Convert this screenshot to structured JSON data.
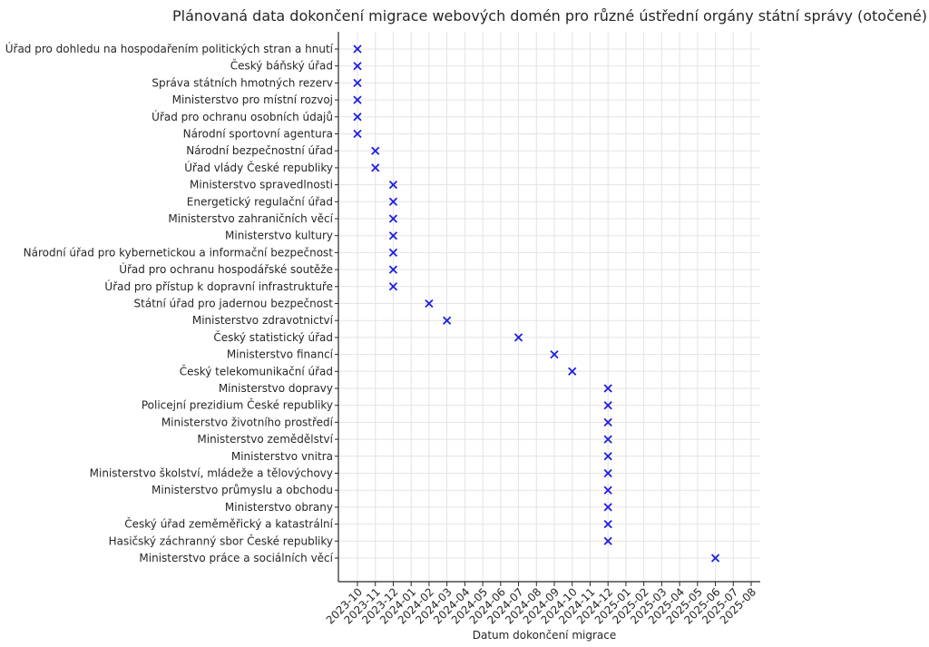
{
  "chart_data": {
    "type": "scatter",
    "title": "Plánovaná data dokončení migrace webových domén pro různé ústřední orgány státní správy (otočené)",
    "xlabel": "Datum dokončení migrace",
    "ylabel": "",
    "grid": true,
    "marker": "x",
    "marker_color": "#1f1fe0",
    "x_tick_labels": [
      "2023-10",
      "2023-11",
      "2023-12",
      "2024-01",
      "2024-02",
      "2024-03",
      "2024-04",
      "2024-05",
      "2024-06",
      "2024-07",
      "2024-08",
      "2024-09",
      "2024-10",
      "2024-11",
      "2024-12",
      "2025-01",
      "2025-02",
      "2025-03",
      "2025-04",
      "2025-05",
      "2025-06",
      "2025-07",
      "2025-08"
    ],
    "categories": [
      "Úřad pro dohledu na hospodařením politických stran a hnutí",
      "Český báňský úřad",
      "Správa státních hmotných rezerv",
      "Ministerstvo pro místní rozvoj",
      "Úřad pro ochranu osobních údajů",
      "Národní sportovní agentura",
      "Národní bezpečnostní úřad",
      "Úřad vlády České republiky",
      "Ministerstvo spravedlnosti",
      "Energetický regulační úřad",
      "Ministerstvo zahraničních věcí",
      "Ministerstvo kultury",
      "Národní úřad pro kybernetickou a informační bezpečnost",
      "Úřad pro ochranu hospodářské soutěže",
      "Úřad pro přístup k dopravní infrastruktuře",
      "Státní úřad pro jadernou bezpečnost",
      "Ministerstvo zdravotnictví",
      "Český statistický úřad",
      "Ministerstvo financí",
      "Český telekomunikační úřad",
      "Ministerstvo dopravy",
      "Policejní prezidium České republiky",
      "Ministerstvo životního prostředí",
      "Ministerstvo zemědělství",
      "Ministerstvo vnitra",
      "Ministerstvo školství, mládeže a tělovýchovy",
      "Ministerstvo průmyslu a obchodu",
      "Ministerstvo obrany",
      "Český úřad zeměměřický a katastrální",
      "Hasičský záchranný sbor České republiky",
      "Ministerstvo práce a sociálních věcí"
    ],
    "dates": [
      "2023-10-01",
      "2023-10-01",
      "2023-10-01",
      "2023-10-01",
      "2023-10-01",
      "2023-10-01",
      "2023-11-01",
      "2023-11-01",
      "2023-12-01",
      "2023-12-01",
      "2023-12-01",
      "2023-12-01",
      "2023-12-01",
      "2023-12-01",
      "2023-12-01",
      "2024-02-01",
      "2024-03-01",
      "2024-07-01",
      "2024-09-01",
      "2024-10-01",
      "2024-12-01",
      "2024-12-01",
      "2024-12-01",
      "2024-12-01",
      "2024-12-01",
      "2024-12-01",
      "2024-12-01",
      "2024-12-01",
      "2024-12-01",
      "2024-12-01",
      "2025-06-01"
    ]
  }
}
